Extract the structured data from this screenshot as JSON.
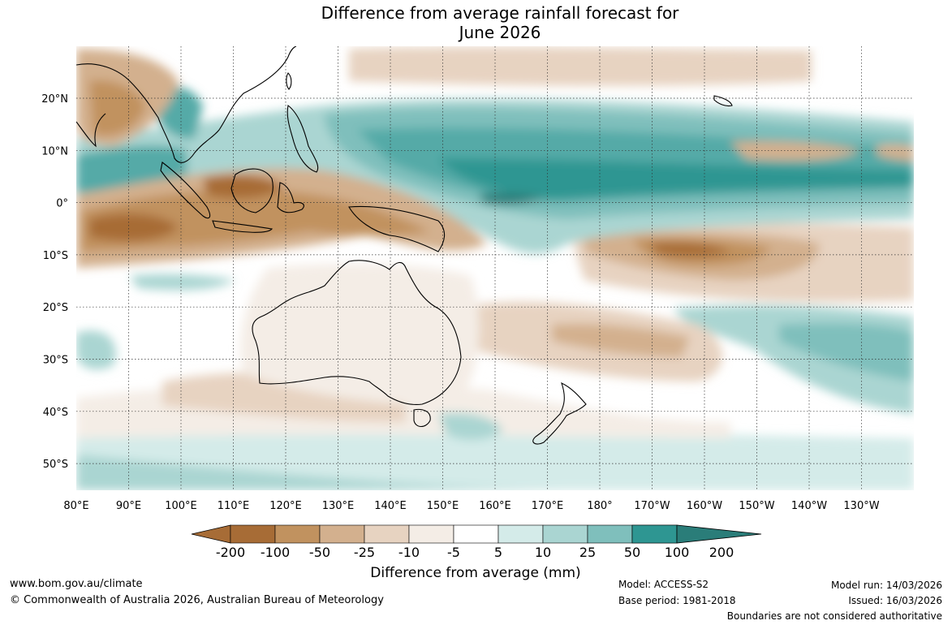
{
  "title_line1": "Difference from average rainfall forecast for",
  "title_line2": "June 2026",
  "lat_labels": [
    "20°N",
    "10°N",
    "0°",
    "10°S",
    "20°S",
    "30°S",
    "40°S",
    "50°S"
  ],
  "lon_labels": [
    "80°E",
    "90°E",
    "100°E",
    "110°E",
    "120°E",
    "130°E",
    "140°E",
    "150°E",
    "160°E",
    "170°E",
    "180°",
    "170°W",
    "160°W",
    "150°W",
    "140°W",
    "130°W"
  ],
  "colorbar": {
    "ticks": [
      "-200",
      "-100",
      "-50",
      "-25",
      "-10",
      "-5",
      "5",
      "10",
      "25",
      "50",
      "100",
      "200"
    ],
    "colors": [
      "#a76c36",
      "#c1925f",
      "#d3b08e",
      "#e7d3c1",
      "#f4ede6",
      "#ffffff",
      "#d4ebe9",
      "#aad5d2",
      "#7fbfbc",
      "#55aaa7",
      "#2e9692",
      "#2a7d79"
    ],
    "label": "Difference from average (mm)"
  },
  "footer": {
    "url": "www.bom.gov.au/climate",
    "copyright": "© Commonwealth of Australia 2026, Australian Bureau of Meteorology",
    "model": "Model: ACCESS-S2",
    "base_period": "Base period: 1981-2018",
    "model_run": "Model run: 14/03/2026",
    "issued": "Issued: 16/03/2026",
    "disclaimer": "Boundaries are not considered authoritative"
  }
}
